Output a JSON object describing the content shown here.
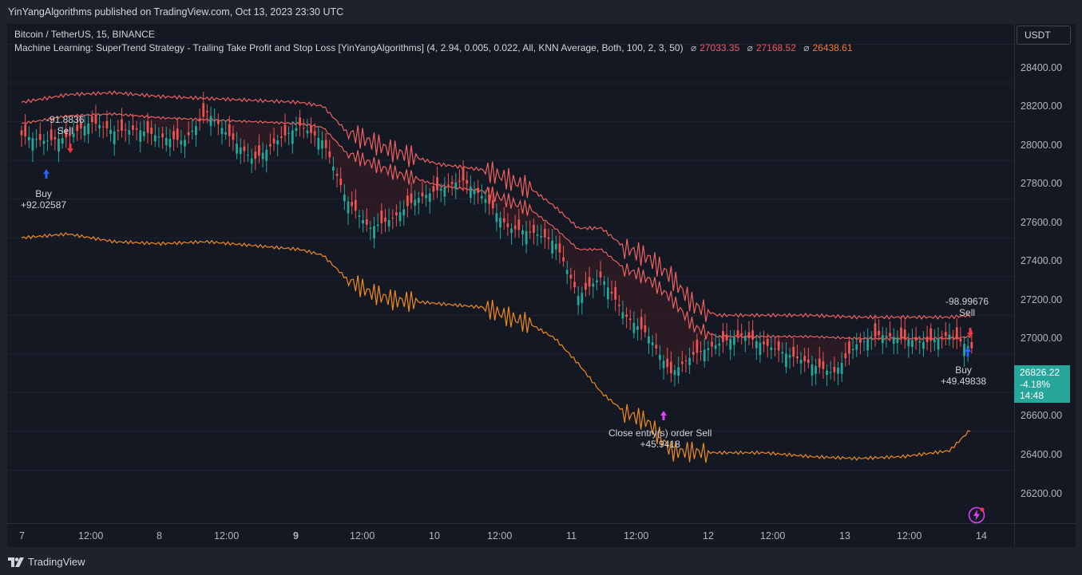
{
  "header": {
    "publish_text": "YinYangAlgorithms published on TradingView.com, Oct 13, 2023 23:30 UTC"
  },
  "legend": {
    "symbol_line": "Bitcoin / TetherUS, 15, BINANCE",
    "indicator_line": "Machine Learning: SuperTrend Strategy - Trailing Take Profit and Stop Loss [YinYangAlgorithms] (4, 2.94, 0.005, 0.022, All, KNN Average, Both, 100, 2, 3, 50)",
    "symbol_glyph": "⌀",
    "value1": "27033.35",
    "value2": "27168.52",
    "value3": "26438.61"
  },
  "currency": "USDT",
  "price_axis": [
    "28400.00",
    "28200.00",
    "28000.00",
    "27800.00",
    "27600.00",
    "27400.00",
    "27200.00",
    "27000.00",
    "26600.00",
    "26400.00",
    "26200.00"
  ],
  "last_price": {
    "price": "26826.22",
    "change": "-4.18%",
    "countdown": "14:48"
  },
  "time_axis": [
    "7",
    "12:00",
    "8",
    "12:00",
    "9",
    "12:00",
    "10",
    "12:00",
    "11",
    "12:00",
    "12",
    "12:00",
    "13",
    "12:00",
    "14"
  ],
  "trades": {
    "sell1": {
      "value": "-91.8836",
      "label": "Sell"
    },
    "buy1": {
      "label": "Buy",
      "value": "+92.02587"
    },
    "close": {
      "label": "Close entry(s) order Sell",
      "value": "+45.9418"
    },
    "sell2": {
      "value": "-98.99676",
      "label": "Sell"
    },
    "buy2": {
      "label": "Buy",
      "value": "+49.49838"
    }
  },
  "footer": {
    "brand": "TradingView"
  },
  "colors": {
    "background": "#141823",
    "up": "#26a69a",
    "down": "#ef5350",
    "upper_band": "#f0605f",
    "lower_band": "#f08a1c",
    "buy_arrow": "#2962ff",
    "sell_arrow": "#f23645",
    "close_arrow": "#e040fb",
    "band_fill": "#3a1e27"
  },
  "chart_data": {
    "type": "line",
    "title": "Bitcoin / TetherUS, 15, BINANCE",
    "ylim": [
      26100,
      28550
    ],
    "y_ticks": [
      26200,
      26400,
      26600,
      26800,
      27000,
      27200,
      27400,
      27600,
      27800,
      28000,
      28200,
      28400
    ],
    "price_close": [
      [
        0,
        27930
      ],
      [
        0.5,
        27900
      ],
      [
        1,
        27920
      ],
      [
        1.5,
        28000
      ],
      [
        2,
        27950
      ],
      [
        2.5,
        27960
      ],
      [
        3,
        27920
      ],
      [
        3.5,
        27900
      ],
      [
        4,
        28050
      ],
      [
        4.5,
        27920
      ],
      [
        5,
        27800
      ],
      [
        5.5,
        27900
      ],
      [
        6,
        27980
      ],
      [
        6.5,
        27900
      ],
      [
        7,
        27600
      ],
      [
        7.5,
        27450
      ],
      [
        8,
        27500
      ],
      [
        8.5,
        27600
      ],
      [
        9,
        27650
      ],
      [
        9.5,
        27700
      ],
      [
        10,
        27600
      ],
      [
        10.5,
        27450
      ],
      [
        11,
        27430
      ],
      [
        11.5,
        27380
      ],
      [
        12,
        27100
      ],
      [
        12.5,
        27200
      ],
      [
        13,
        27000
      ],
      [
        13.5,
        26900
      ],
      [
        14,
        26700
      ],
      [
        14.5,
        26800
      ],
      [
        15,
        26850
      ],
      [
        15.5,
        26900
      ],
      [
        16,
        26850
      ],
      [
        16.5,
        26800
      ],
      [
        17,
        26750
      ],
      [
        17.5,
        26700
      ],
      [
        18,
        26850
      ],
      [
        18.5,
        26900
      ],
      [
        19,
        26880
      ],
      [
        19.5,
        26860
      ],
      [
        20,
        26900
      ],
      [
        20.5,
        26826
      ]
    ],
    "upper_band": [
      [
        0,
        28100
      ],
      [
        1,
        28140
      ],
      [
        2,
        28150
      ],
      [
        3,
        28130
      ],
      [
        4,
        28120
      ],
      [
        5,
        28110
      ],
      [
        6,
        28100
      ],
      [
        6.5,
        28080
      ],
      [
        7,
        27950
      ],
      [
        7.5,
        27900
      ],
      [
        8,
        27850
      ],
      [
        9,
        27780
      ],
      [
        10,
        27750
      ],
      [
        10.5,
        27700
      ],
      [
        11,
        27650
      ],
      [
        11.5,
        27560
      ],
      [
        12,
        27450
      ],
      [
        12.5,
        27450
      ],
      [
        13,
        27350
      ],
      [
        13.5,
        27300
      ],
      [
        14,
        27200
      ],
      [
        14.5,
        27050
      ],
      [
        15,
        27000
      ],
      [
        16,
        27000
      ],
      [
        17,
        27000
      ],
      [
        18,
        26990
      ],
      [
        19,
        26990
      ],
      [
        20,
        26990
      ],
      [
        20.5,
        27000
      ]
    ],
    "lower_band": [
      [
        0,
        27400
      ],
      [
        1,
        27420
      ],
      [
        2,
        27380
      ],
      [
        3,
        27370
      ],
      [
        4,
        27380
      ],
      [
        5,
        27360
      ],
      [
        6,
        27340
      ],
      [
        6.5,
        27310
      ],
      [
        7,
        27190
      ],
      [
        7.5,
        27120
      ],
      [
        8,
        27080
      ],
      [
        9,
        27060
      ],
      [
        10,
        27040
      ],
      [
        10.5,
        26990
      ],
      [
        11,
        26950
      ],
      [
        11.5,
        26880
      ],
      [
        12,
        26750
      ],
      [
        12.5,
        26600
      ],
      [
        13,
        26500
      ],
      [
        13.5,
        26450
      ],
      [
        14,
        26300
      ],
      [
        15,
        26290
      ],
      [
        16,
        26290
      ],
      [
        17,
        26270
      ],
      [
        18,
        26260
      ],
      [
        19,
        26270
      ],
      [
        20,
        26300
      ],
      [
        20.5,
        26420
      ]
    ],
    "time_labels": [
      "7",
      "12:00",
      "8",
      "12:00",
      "9",
      "12:00",
      "10",
      "12:00",
      "11",
      "12:00",
      "12",
      "12:00",
      "13",
      "12:00",
      "14"
    ]
  }
}
